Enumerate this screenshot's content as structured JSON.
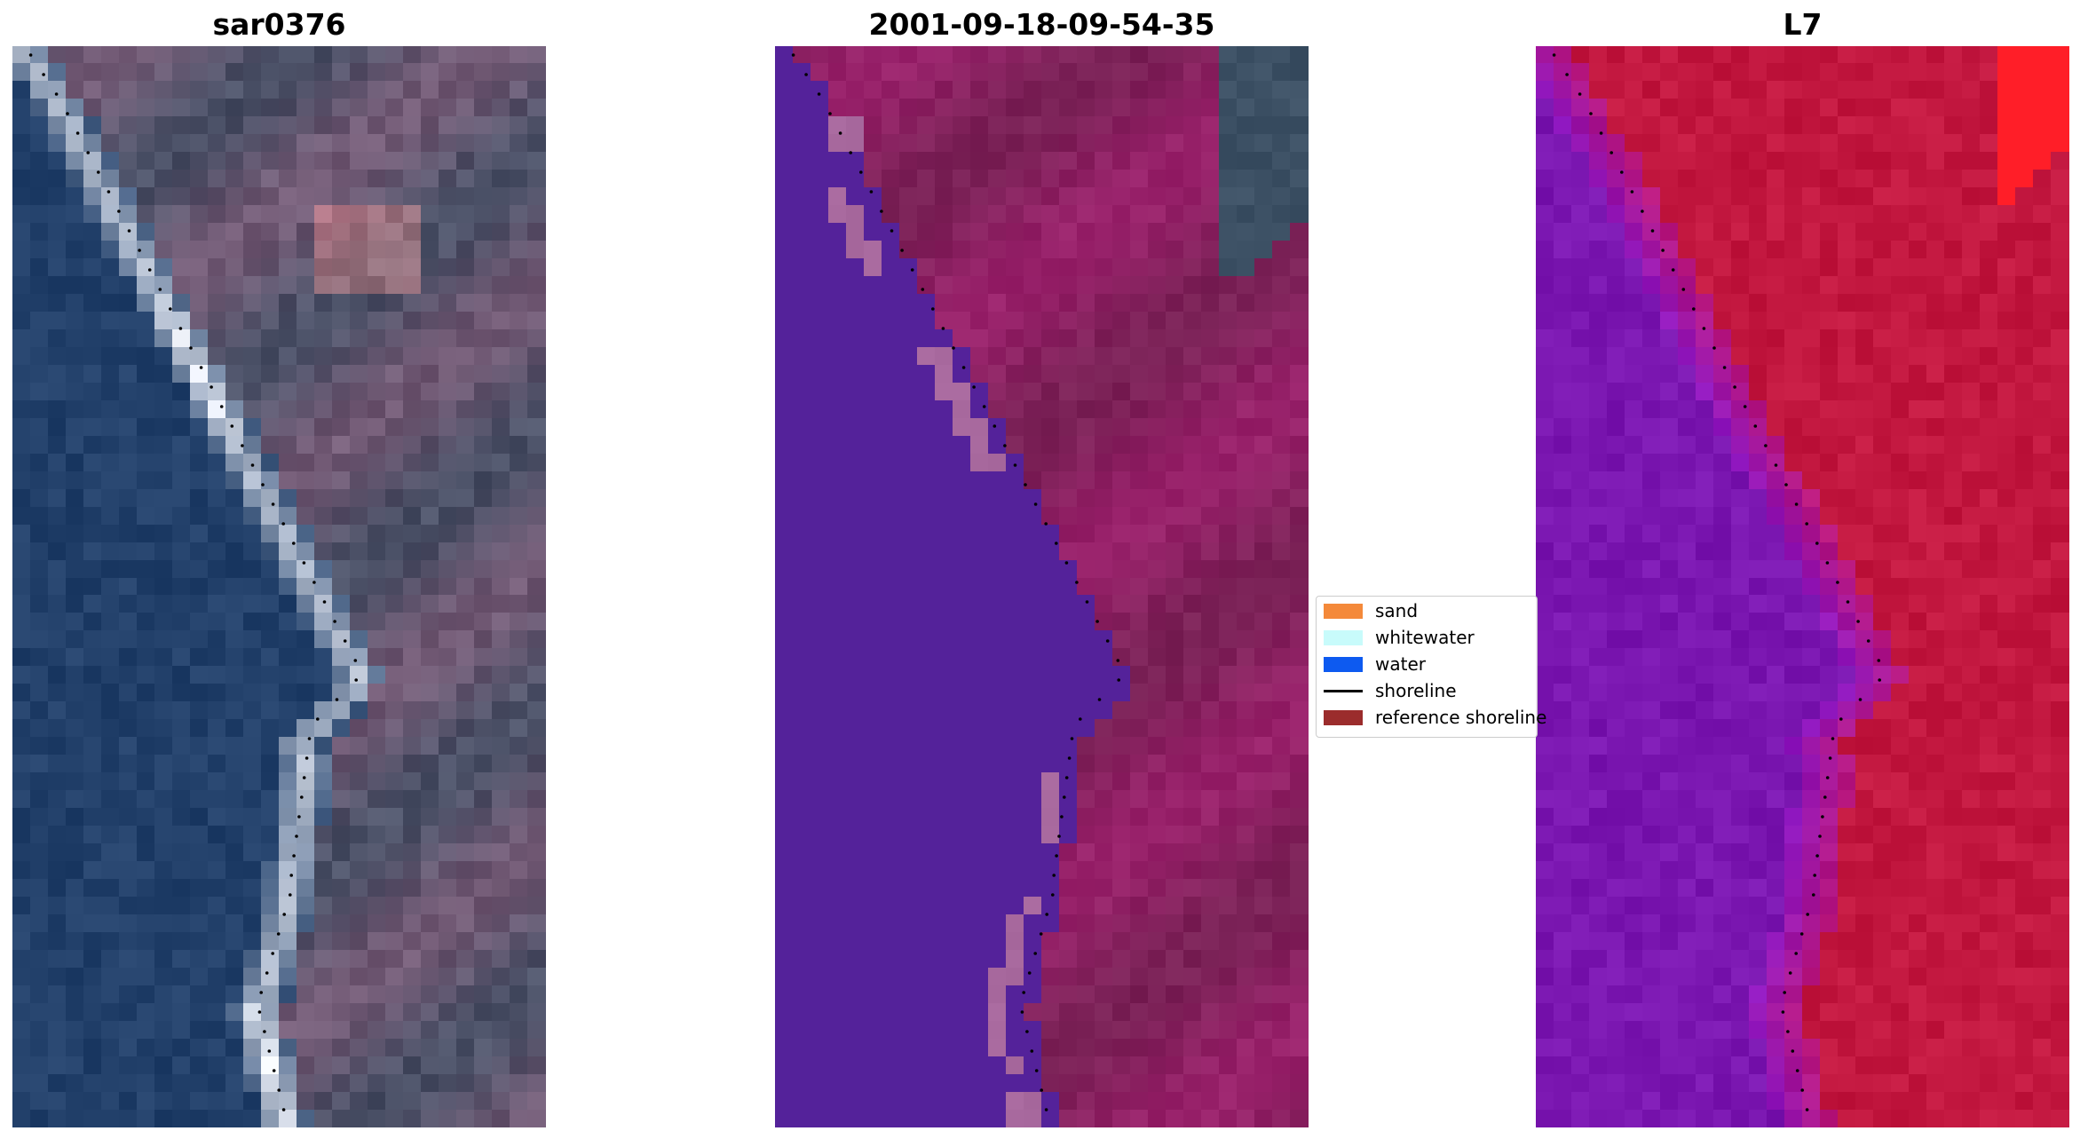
{
  "figure": {
    "panels": [
      {
        "id": "rgb",
        "title": "sar0376"
      },
      {
        "id": "classified",
        "title": "2001-09-18-09-54-35"
      },
      {
        "id": "index",
        "title": "L7"
      }
    ]
  },
  "legend": {
    "items": [
      {
        "label": "sand",
        "color": "#f4893a",
        "kind": "patch"
      },
      {
        "label": "whitewater",
        "color": "#c8fbfb",
        "kind": "patch"
      },
      {
        "label": "water",
        "color": "#0d5af0",
        "kind": "patch"
      },
      {
        "label": "shoreline",
        "color": "#000000",
        "kind": "line"
      },
      {
        "label": "reference shoreline",
        "color": "#9b2c2c",
        "kind": "patch"
      }
    ]
  },
  "colors": {
    "classified_water": "#54229a",
    "classified_land": "#7a2156",
    "classified_sand_patch": "#a8699e",
    "index_water": "#7a16b0",
    "index_land": "#c2173f",
    "rgb_water": "#22406a",
    "rgb_land": "#4a5066",
    "rgb_beach": "#dfe4ee"
  }
}
